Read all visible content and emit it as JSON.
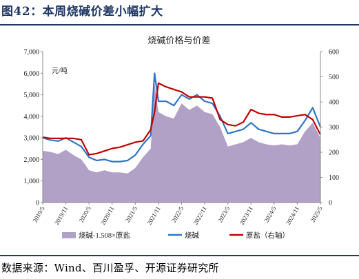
{
  "figure": {
    "number": "图42：",
    "title": "本周烧碱价差小幅扩大",
    "source": "数据来源：Wind、百川盈孚、开源证券研究所"
  },
  "colors": {
    "fill_spread": "#b2a1c7",
    "line_caustic": "#2e75c6",
    "line_salt": "#c00000",
    "brand": "#1f3864"
  },
  "chart_data": {
    "type": "line",
    "title": "烧碱价格与价差",
    "unit_label": "元/吨",
    "xlabel": "",
    "ylabel": "",
    "x_ticks": [
      "2019/5",
      "2019/11",
      "2020/5",
      "2020/11",
      "2021/5",
      "2021/11",
      "2022/5",
      "2022/11",
      "2023/5",
      "2023/11",
      "2024/5",
      "2024/11",
      "2025/5"
    ],
    "x_range": [
      "2019/5",
      "2025/5"
    ],
    "ylim_left": [
      0,
      7000
    ],
    "yticks_left": [
      "0",
      "1,000",
      "2,000",
      "3,000",
      "4,000",
      "5,000",
      "6,000",
      "7,000"
    ],
    "ylim_right": [
      0,
      600
    ],
    "yticks_right": [
      "0",
      "100",
      "200",
      "300",
      "400",
      "500",
      "600"
    ],
    "legend": [
      "烧碱-1.508×原盐",
      "烧碱",
      "原盐（右轴）"
    ],
    "legend_position": "bottom",
    "series": [
      {
        "name": "烧碱-1.508×原盐",
        "type": "area",
        "axis": "left",
        "x": [
          "2019/5",
          "2019/7",
          "2019/9",
          "2019/11",
          "2020/1",
          "2020/3",
          "2020/5",
          "2020/7",
          "2020/9",
          "2020/11",
          "2021/1",
          "2021/3",
          "2021/5",
          "2021/7",
          "2021/9",
          "2021/10",
          "2021/11",
          "2022/1",
          "2022/3",
          "2022/5",
          "2022/7",
          "2022/9",
          "2022/11",
          "2023/1",
          "2023/3",
          "2023/5",
          "2023/7",
          "2023/9",
          "2023/11",
          "2024/1",
          "2024/3",
          "2024/5",
          "2024/7",
          "2024/9",
          "2024/11",
          "2025/1",
          "2025/3",
          "2025/5"
        ],
        "values": [
          2400,
          2350,
          2250,
          2450,
          2200,
          2000,
          1500,
          1400,
          1500,
          1400,
          1400,
          1350,
          1600,
          2100,
          2500,
          5500,
          4200,
          4000,
          3900,
          4600,
          4300,
          4500,
          4200,
          4100,
          3500,
          2600,
          2700,
          2800,
          3000,
          2800,
          2700,
          2650,
          2700,
          2650,
          2700,
          3300,
          3700,
          3000
        ]
      },
      {
        "name": "烧碱",
        "type": "line",
        "axis": "left",
        "x": [
          "2019/5",
          "2019/7",
          "2019/9",
          "2019/11",
          "2020/1",
          "2020/3",
          "2020/5",
          "2020/7",
          "2020/9",
          "2020/11",
          "2021/1",
          "2021/3",
          "2021/5",
          "2021/7",
          "2021/9",
          "2021/10",
          "2021/11",
          "2022/1",
          "2022/3",
          "2022/5",
          "2022/7",
          "2022/9",
          "2022/11",
          "2023/1",
          "2023/3",
          "2023/5",
          "2023/7",
          "2023/9",
          "2023/11",
          "2024/1",
          "2024/3",
          "2024/5",
          "2024/7",
          "2024/9",
          "2024/11",
          "2025/1",
          "2025/3",
          "2025/5"
        ],
        "values": [
          3000,
          2900,
          2850,
          3000,
          2800,
          2600,
          2100,
          1950,
          2000,
          1900,
          1900,
          1950,
          2200,
          2700,
          3100,
          6000,
          4700,
          4700,
          4500,
          5000,
          4800,
          5000,
          4700,
          4600,
          4000,
          3200,
          3300,
          3400,
          3700,
          3400,
          3300,
          3200,
          3200,
          3200,
          3300,
          3800,
          4400,
          3500
        ]
      },
      {
        "name": "原盐（右轴）",
        "type": "line",
        "axis": "right",
        "x": [
          "2019/5",
          "2019/7",
          "2019/9",
          "2019/11",
          "2020/1",
          "2020/3",
          "2020/5",
          "2020/7",
          "2020/9",
          "2020/11",
          "2021/1",
          "2021/3",
          "2021/5",
          "2021/7",
          "2021/9",
          "2021/10",
          "2021/11",
          "2022/1",
          "2022/3",
          "2022/5",
          "2022/7",
          "2022/9",
          "2022/11",
          "2023/1",
          "2023/3",
          "2023/5",
          "2023/7",
          "2023/9",
          "2023/11",
          "2024/1",
          "2024/3",
          "2024/5",
          "2024/7",
          "2024/9",
          "2024/11",
          "2025/1",
          "2025/3",
          "2025/5"
        ],
        "values": [
          260,
          255,
          255,
          255,
          255,
          250,
          190,
          195,
          205,
          215,
          220,
          230,
          240,
          245,
          290,
          360,
          475,
          460,
          450,
          440,
          420,
          420,
          420,
          415,
          330,
          310,
          305,
          320,
          370,
          355,
          350,
          350,
          340,
          340,
          345,
          350,
          330,
          270
        ]
      }
    ]
  }
}
